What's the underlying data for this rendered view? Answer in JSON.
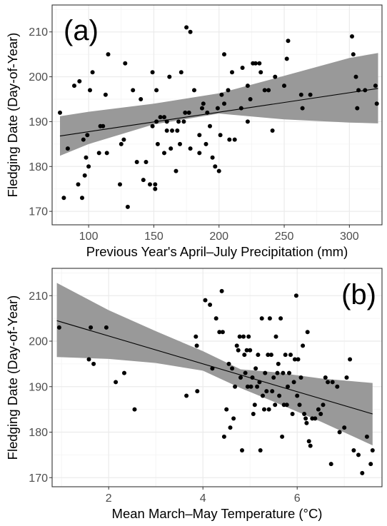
{
  "chart_data": [
    {
      "type": "scatter",
      "panel_label": "(a)",
      "xlabel": "Previous Year's April–July Precipitation (mm)",
      "ylabel": "Fledging Date (Day-of-Year)",
      "xlim": [
        72,
        325
      ],
      "ylim": [
        167,
        216
      ],
      "xticks": [
        100,
        150,
        200,
        250,
        300
      ],
      "yticks": [
        170,
        180,
        190,
        200,
        210
      ],
      "grid": true,
      "colors": {
        "points": "#000000",
        "ribbon": "#999999",
        "fit": "#000000",
        "grid": "#ebebeb",
        "border": "#333333"
      },
      "fit_line": {
        "x": [
          78,
          322
        ],
        "y": [
          186.8,
          197.4
        ]
      },
      "confidence_band": {
        "x": [
          78,
          100,
          150,
          200,
          250,
          300,
          322
        ],
        "lower": [
          182.4,
          185.0,
          189.4,
          191.8,
          190.5,
          189.8,
          189.6
        ],
        "upper": [
          191.2,
          192.2,
          194.0,
          196.3,
          200.2,
          204.2,
          205.3
        ]
      },
      "points": [
        {
          "x": 78,
          "y": 192
        },
        {
          "x": 81,
          "y": 173
        },
        {
          "x": 84,
          "y": 184
        },
        {
          "x": 89,
          "y": 198
        },
        {
          "x": 92,
          "y": 176
        },
        {
          "x": 93,
          "y": 199
        },
        {
          "x": 95,
          "y": 173
        },
        {
          "x": 96,
          "y": 186
        },
        {
          "x": 97,
          "y": 178
        },
        {
          "x": 98,
          "y": 182
        },
        {
          "x": 99,
          "y": 187
        },
        {
          "x": 100,
          "y": 180
        },
        {
          "x": 101,
          "y": 197
        },
        {
          "x": 103,
          "y": 201
        },
        {
          "x": 108,
          "y": 183
        },
        {
          "x": 109,
          "y": 189
        },
        {
          "x": 111,
          "y": 189
        },
        {
          "x": 113,
          "y": 196
        },
        {
          "x": 114,
          "y": 183
        },
        {
          "x": 115,
          "y": 205
        },
        {
          "x": 124,
          "y": 176
        },
        {
          "x": 125,
          "y": 185
        },
        {
          "x": 127,
          "y": 186
        },
        {
          "x": 128,
          "y": 203
        },
        {
          "x": 130,
          "y": 171
        },
        {
          "x": 134,
          "y": 197
        },
        {
          "x": 137,
          "y": 181
        },
        {
          "x": 140,
          "y": 195
        },
        {
          "x": 142,
          "y": 177
        },
        {
          "x": 144,
          "y": 181
        },
        {
          "x": 147,
          "y": 176
        },
        {
          "x": 149,
          "y": 189
        },
        {
          "x": 149,
          "y": 201
        },
        {
          "x": 151,
          "y": 176
        },
        {
          "x": 151,
          "y": 175
        },
        {
          "x": 152,
          "y": 190
        },
        {
          "x": 152,
          "y": 197
        },
        {
          "x": 153,
          "y": 185
        },
        {
          "x": 155,
          "y": 191
        },
        {
          "x": 158,
          "y": 191
        },
        {
          "x": 158,
          "y": 183
        },
        {
          "x": 160,
          "y": 188
        },
        {
          "x": 160,
          "y": 190
        },
        {
          "x": 162,
          "y": 200
        },
        {
          "x": 163,
          "y": 184
        },
        {
          "x": 164,
          "y": 188
        },
        {
          "x": 167,
          "y": 179
        },
        {
          "x": 168,
          "y": 188
        },
        {
          "x": 169,
          "y": 190
        },
        {
          "x": 170,
          "y": 185
        },
        {
          "x": 171,
          "y": 201
        },
        {
          "x": 173,
          "y": 190
        },
        {
          "x": 174,
          "y": 192
        },
        {
          "x": 175,
          "y": 211
        },
        {
          "x": 177,
          "y": 192
        },
        {
          "x": 178,
          "y": 184
        },
        {
          "x": 178,
          "y": 210
        },
        {
          "x": 181,
          "y": 197
        },
        {
          "x": 185,
          "y": 187
        },
        {
          "x": 185,
          "y": 183
        },
        {
          "x": 187,
          "y": 193
        },
        {
          "x": 188,
          "y": 194
        },
        {
          "x": 190,
          "y": 185
        },
        {
          "x": 191,
          "y": 192
        },
        {
          "x": 193,
          "y": 189
        },
        {
          "x": 195,
          "y": 182
        },
        {
          "x": 197,
          "y": 180
        },
        {
          "x": 199,
          "y": 193
        },
        {
          "x": 200,
          "y": 179
        },
        {
          "x": 201,
          "y": 187
        },
        {
          "x": 202,
          "y": 196
        },
        {
          "x": 204,
          "y": 194
        },
        {
          "x": 204,
          "y": 205
        },
        {
          "x": 207,
          "y": 197
        },
        {
          "x": 208,
          "y": 186
        },
        {
          "x": 210,
          "y": 201
        },
        {
          "x": 212,
          "y": 186
        },
        {
          "x": 217,
          "y": 193
        },
        {
          "x": 218,
          "y": 202
        },
        {
          "x": 222,
          "y": 190
        },
        {
          "x": 222,
          "y": 198
        },
        {
          "x": 224,
          "y": 195
        },
        {
          "x": 226,
          "y": 203
        },
        {
          "x": 228,
          "y": 203
        },
        {
          "x": 231,
          "y": 203
        },
        {
          "x": 232,
          "y": 201
        },
        {
          "x": 235,
          "y": 197
        },
        {
          "x": 238,
          "y": 197
        },
        {
          "x": 241,
          "y": 188
        },
        {
          "x": 243,
          "y": 200
        },
        {
          "x": 250,
          "y": 198
        },
        {
          "x": 252,
          "y": 204
        },
        {
          "x": 253,
          "y": 208
        },
        {
          "x": 263,
          "y": 196
        },
        {
          "x": 264,
          "y": 193
        },
        {
          "x": 270,
          "y": 196
        },
        {
          "x": 302,
          "y": 209
        },
        {
          "x": 303,
          "y": 205
        },
        {
          "x": 305,
          "y": 200
        },
        {
          "x": 306,
          "y": 193
        },
        {
          "x": 307,
          "y": 197
        },
        {
          "x": 312,
          "y": 197
        },
        {
          "x": 320,
          "y": 198
        },
        {
          "x": 321,
          "y": 194
        }
      ]
    },
    {
      "type": "scatter",
      "panel_label": "(b)",
      "xlabel": "Mean March–May Temperature (°C)",
      "ylabel": "Fledging Date (Day-of-Year)",
      "xlim": [
        0.8,
        7.8
      ],
      "ylim": [
        168,
        216
      ],
      "xticks": [
        2,
        4,
        6
      ],
      "yticks": [
        170,
        180,
        190,
        200,
        210
      ],
      "grid": true,
      "colors": {
        "points": "#000000",
        "ribbon": "#999999",
        "fit": "#000000",
        "grid": "#ebebeb",
        "border": "#333333"
      },
      "fit_line": {
        "x": [
          0.9,
          7.6
        ],
        "y": [
          204.5,
          184.0
        ]
      },
      "confidence_band": {
        "x": [
          0.9,
          2,
          3,
          4,
          4.8,
          5.5,
          6.5,
          7.6
        ],
        "lower": [
          196.5,
          196.1,
          195.2,
          193.5,
          189.7,
          186.7,
          182.3,
          177.1
        ],
        "upper": [
          212.8,
          206.8,
          202.2,
          197.8,
          193.8,
          193.2,
          191.8,
          190.8
        ]
      },
      "points": [
        {
          "x": 0.95,
          "y": 203
        },
        {
          "x": 1.58,
          "y": 196
        },
        {
          "x": 1.62,
          "y": 203
        },
        {
          "x": 1.68,
          "y": 195
        },
        {
          "x": 1.95,
          "y": 203
        },
        {
          "x": 2.15,
          "y": 191
        },
        {
          "x": 2.33,
          "y": 193
        },
        {
          "x": 2.55,
          "y": 185
        },
        {
          "x": 3.65,
          "y": 188
        },
        {
          "x": 3.85,
          "y": 201
        },
        {
          "x": 3.87,
          "y": 199
        },
        {
          "x": 3.88,
          "y": 189
        },
        {
          "x": 4.05,
          "y": 209
        },
        {
          "x": 4.15,
          "y": 208
        },
        {
          "x": 4.2,
          "y": 194
        },
        {
          "x": 4.28,
          "y": 205
        },
        {
          "x": 4.35,
          "y": 202
        },
        {
          "x": 4.4,
          "y": 211
        },
        {
          "x": 4.42,
          "y": 202
        },
        {
          "x": 4.45,
          "y": 179
        },
        {
          "x": 4.5,
          "y": 185
        },
        {
          "x": 4.55,
          "y": 195
        },
        {
          "x": 4.58,
          "y": 181
        },
        {
          "x": 4.62,
          "y": 194
        },
        {
          "x": 4.65,
          "y": 183
        },
        {
          "x": 4.68,
          "y": 190
        },
        {
          "x": 4.72,
          "y": 199
        },
        {
          "x": 4.75,
          "y": 198
        },
        {
          "x": 4.78,
          "y": 201
        },
        {
          "x": 4.8,
          "y": 192
        },
        {
          "x": 4.83,
          "y": 176
        },
        {
          "x": 4.86,
          "y": 201
        },
        {
          "x": 4.88,
          "y": 197
        },
        {
          "x": 4.9,
          "y": 193
        },
        {
          "x": 4.93,
          "y": 198
        },
        {
          "x": 4.95,
          "y": 190
        },
        {
          "x": 4.97,
          "y": 201
        },
        {
          "x": 5.0,
          "y": 198
        },
        {
          "x": 5.02,
          "y": 190
        },
        {
          "x": 5.05,
          "y": 192
        },
        {
          "x": 5.07,
          "y": 184
        },
        {
          "x": 5.1,
          "y": 186
        },
        {
          "x": 5.12,
          "y": 194
        },
        {
          "x": 5.15,
          "y": 190
        },
        {
          "x": 5.17,
          "y": 197
        },
        {
          "x": 5.2,
          "y": 191
        },
        {
          "x": 5.22,
          "y": 176
        },
        {
          "x": 5.25,
          "y": 205
        },
        {
          "x": 5.27,
          "y": 188
        },
        {
          "x": 5.3,
          "y": 185
        },
        {
          "x": 5.32,
          "y": 193
        },
        {
          "x": 5.35,
          "y": 189
        },
        {
          "x": 5.38,
          "y": 197
        },
        {
          "x": 5.4,
          "y": 185
        },
        {
          "x": 5.42,
          "y": 205
        },
        {
          "x": 5.45,
          "y": 197
        },
        {
          "x": 5.47,
          "y": 189
        },
        {
          "x": 5.5,
          "y": 192
        },
        {
          "x": 5.53,
          "y": 186
        },
        {
          "x": 5.55,
          "y": 201
        },
        {
          "x": 5.58,
          "y": 193
        },
        {
          "x": 5.6,
          "y": 195
        },
        {
          "x": 5.62,
          "y": 188
        },
        {
          "x": 5.65,
          "y": 205
        },
        {
          "x": 5.68,
          "y": 179
        },
        {
          "x": 5.7,
          "y": 193
        },
        {
          "x": 5.72,
          "y": 186
        },
        {
          "x": 5.75,
          "y": 197
        },
        {
          "x": 5.78,
          "y": 186
        },
        {
          "x": 5.8,
          "y": 190
        },
        {
          "x": 5.83,
          "y": 193
        },
        {
          "x": 5.86,
          "y": 197
        },
        {
          "x": 5.9,
          "y": 184
        },
        {
          "x": 5.93,
          "y": 191
        },
        {
          "x": 5.95,
          "y": 196
        },
        {
          "x": 5.98,
          "y": 210
        },
        {
          "x": 6.0,
          "y": 188
        },
        {
          "x": 6.02,
          "y": 196
        },
        {
          "x": 6.05,
          "y": 186
        },
        {
          "x": 6.08,
          "y": 192
        },
        {
          "x": 6.12,
          "y": 199
        },
        {
          "x": 6.15,
          "y": 184
        },
        {
          "x": 6.18,
          "y": 183
        },
        {
          "x": 6.2,
          "y": 182
        },
        {
          "x": 6.22,
          "y": 202
        },
        {
          "x": 6.25,
          "y": 178
        },
        {
          "x": 6.28,
          "y": 177
        },
        {
          "x": 6.32,
          "y": 183
        },
        {
          "x": 6.38,
          "y": 183
        },
        {
          "x": 6.45,
          "y": 185
        },
        {
          "x": 6.5,
          "y": 184
        },
        {
          "x": 6.55,
          "y": 186
        },
        {
          "x": 6.6,
          "y": 192
        },
        {
          "x": 6.65,
          "y": 191
        },
        {
          "x": 6.72,
          "y": 173
        },
        {
          "x": 6.75,
          "y": 191
        },
        {
          "x": 6.85,
          "y": 190
        },
        {
          "x": 6.9,
          "y": 180
        },
        {
          "x": 7.0,
          "y": 181
        },
        {
          "x": 7.05,
          "y": 192
        },
        {
          "x": 7.12,
          "y": 196
        },
        {
          "x": 7.2,
          "y": 176
        },
        {
          "x": 7.3,
          "y": 175
        },
        {
          "x": 7.38,
          "y": 171
        },
        {
          "x": 7.48,
          "y": 179
        },
        {
          "x": 7.56,
          "y": 173
        },
        {
          "x": 7.6,
          "y": 176
        }
      ]
    }
  ]
}
